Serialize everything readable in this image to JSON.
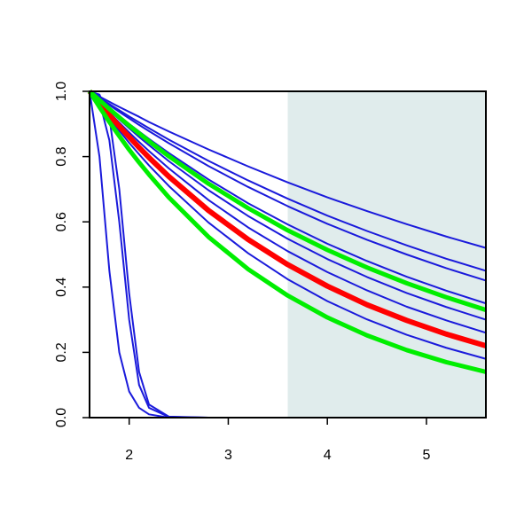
{
  "chart_data": {
    "type": "line",
    "x": [
      1.6,
      1.7,
      1.8,
      1.9,
      2.0,
      2.1,
      2.2,
      2.4,
      2.8,
      3.2,
      3.6,
      4.0,
      4.4,
      4.8,
      5.2,
      5.6
    ],
    "series": [
      {
        "color": "#1a1adb",
        "linewidth": 2,
        "values": [
          1,
          0.8,
          0.45,
          0.2,
          0.08,
          0.03,
          0.01,
          0,
          0,
          0,
          0,
          0,
          0,
          0,
          0,
          0
        ]
      },
      {
        "color": "#1a1adb",
        "linewidth": 2,
        "values": [
          1,
          0.97,
          0.85,
          0.6,
          0.3,
          0.1,
          0.03,
          0.002,
          0,
          0,
          0,
          0,
          0,
          0,
          0,
          0
        ]
      },
      {
        "color": "#1a1adb",
        "linewidth": 2,
        "values": [
          1,
          0.99,
          0.92,
          0.7,
          0.38,
          0.14,
          0.04,
          0.003,
          0,
          0,
          0,
          0,
          0,
          0,
          0,
          0
        ]
      },
      {
        "color": "#1a1adb",
        "linewidth": 2,
        "values": [
          1,
          0.984,
          0.968,
          0.952,
          0.937,
          0.922,
          0.906,
          0.877,
          0.822,
          0.77,
          0.721,
          0.675,
          0.633,
          0.593,
          0.555,
          0.52
        ]
      },
      {
        "color": "#1a1adb",
        "linewidth": 2,
        "values": [
          1,
          0.98,
          0.961,
          0.942,
          0.923,
          0.905,
          0.887,
          0.852,
          0.787,
          0.727,
          0.671,
          0.619,
          0.572,
          0.528,
          0.487,
          0.45
        ]
      },
      {
        "color": "#1a1adb",
        "linewidth": 2,
        "values": [
          1,
          0.979,
          0.958,
          0.937,
          0.917,
          0.897,
          0.878,
          0.841,
          0.771,
          0.707,
          0.648,
          0.594,
          0.545,
          0.5,
          0.458,
          0.42
        ]
      },
      {
        "color": "#1a1adb",
        "linewidth": 2,
        "values": [
          1,
          0.974,
          0.949,
          0.924,
          0.9,
          0.877,
          0.854,
          0.811,
          0.73,
          0.657,
          0.592,
          0.533,
          0.48,
          0.432,
          0.389,
          0.35
        ]
      },
      {
        "color": "#1a1adb",
        "linewidth": 2,
        "values": [
          1,
          0.97,
          0.942,
          0.914,
          0.887,
          0.86,
          0.835,
          0.786,
          0.697,
          0.618,
          0.548,
          0.486,
          0.431,
          0.382,
          0.339,
          0.3
        ]
      },
      {
        "color": "#1a1adb",
        "linewidth": 2,
        "values": [
          1,
          0.967,
          0.935,
          0.904,
          0.874,
          0.845,
          0.817,
          0.764,
          0.667,
          0.583,
          0.51,
          0.446,
          0.39,
          0.34,
          0.298,
          0.26
        ]
      },
      {
        "color": "#1a1adb",
        "linewidth": 2,
        "values": [
          1,
          0.958,
          0.918,
          0.879,
          0.842,
          0.807,
          0.773,
          0.71,
          0.598,
          0.504,
          0.424,
          0.357,
          0.301,
          0.254,
          0.214,
          0.18
        ]
      },
      {
        "color": "#ff0000",
        "linewidth": 6,
        "values": [
          1,
          0.963,
          0.927,
          0.893,
          0.86,
          0.828,
          0.797,
          0.739,
          0.635,
          0.546,
          0.469,
          0.403,
          0.346,
          0.298,
          0.256,
          0.22
        ]
      },
      {
        "color": "#00ee00",
        "linewidth": 5,
        "values": [
          1,
          0.973,
          0.946,
          0.92,
          0.895,
          0.871,
          0.847,
          0.801,
          0.717,
          0.642,
          0.574,
          0.514,
          0.46,
          0.412,
          0.369,
          0.33
        ]
      },
      {
        "color": "#00ee00",
        "linewidth": 5,
        "values": [
          1,
          0.952,
          0.906,
          0.863,
          0.821,
          0.782,
          0.745,
          0.675,
          0.554,
          0.455,
          0.374,
          0.307,
          0.252,
          0.207,
          0.17,
          0.14
        ]
      }
    ],
    "xlim": [
      1.6,
      5.6
    ],
    "ylim": [
      0,
      1
    ],
    "xticks": [
      2,
      3,
      4,
      5
    ],
    "yticks": [
      {
        "value": 0,
        "label": "0.0"
      },
      {
        "value": 0.2,
        "label": "0.2"
      },
      {
        "value": 0.4,
        "label": "0.4"
      },
      {
        "value": 0.6,
        "label": "0.6"
      },
      {
        "value": 0.8,
        "label": "0.8"
      },
      {
        "value": 1,
        "label": "1.0"
      }
    ],
    "shade": {
      "xlim": [
        3.6,
        5.6
      ],
      "color": "#e0ecec"
    }
  }
}
